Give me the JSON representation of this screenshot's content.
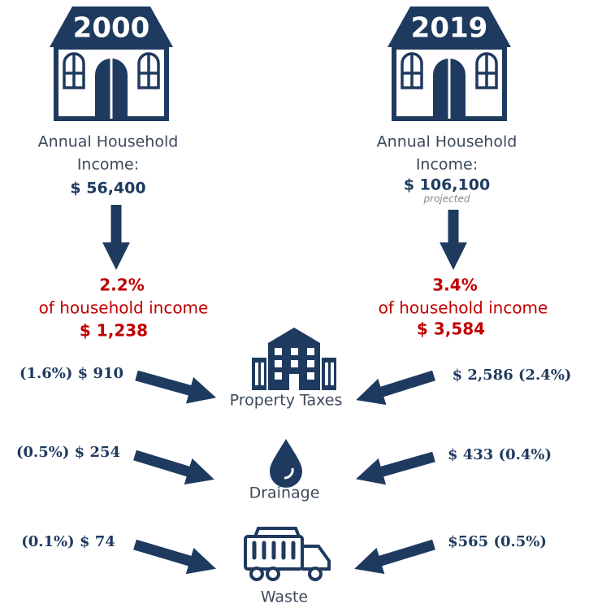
{
  "left": {
    "year": "2000",
    "income_label": [
      "Annual Household",
      "Income:"
    ],
    "income": "$ 56,400",
    "share": "2.2%",
    "share_label": "of household income",
    "total": "$ 1,238"
  },
  "right": {
    "year": "2019",
    "income_label": [
      "Annual Household",
      "Income:"
    ],
    "income": "$ 106,100",
    "note": "projected",
    "share": "3.4%",
    "share_label": "of household income",
    "total": "$ 3,584"
  },
  "services": [
    {
      "name": "Property Taxes",
      "left": "(1.6%) $ 910",
      "right": "$ 2,586 (2.4%)"
    },
    {
      "name": "Drainage",
      "left": "(0.5%) $ 254",
      "right": "$ 433 (0.4%)"
    },
    {
      "name": "Waste",
      "left": "(0.1%) $ 74",
      "right": "$565 (0.5%)"
    }
  ]
}
